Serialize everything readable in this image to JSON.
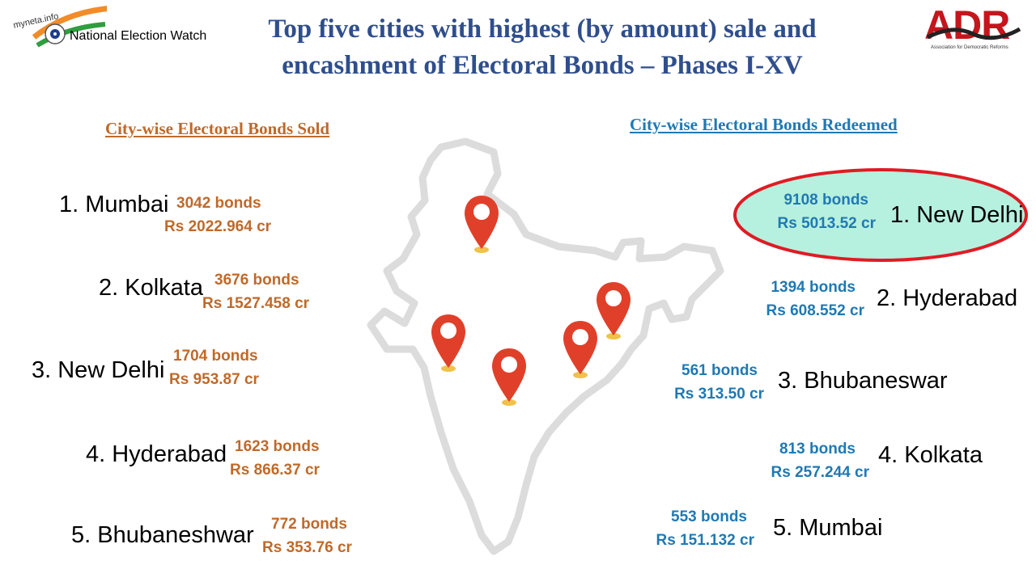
{
  "logos": {
    "left_small": "myneta.info",
    "left_main": "National Election Watch",
    "right_main": "ADR",
    "right_sub": "Association for Democratic Reforms"
  },
  "title": {
    "line1": "Top five cities with highest (by amount) sale and",
    "line2": "encashment of Electoral Bonds – Phases I-XV"
  },
  "sold": {
    "heading": "City-wise Electoral Bonds Sold",
    "items": [
      {
        "city": "1. Mumbai",
        "bonds": "3042 bonds",
        "amount": "Rs 2022.964 cr"
      },
      {
        "city": "2. Kolkata",
        "bonds": "3676 bonds",
        "amount": "Rs 1527.458 cr"
      },
      {
        "city": "3. New Delhi",
        "bonds": "1704 bonds",
        "amount": "Rs 953.87 cr"
      },
      {
        "city": "4. Hyderabad",
        "bonds": "1623 bonds",
        "amount": "Rs 866.37 cr"
      },
      {
        "city": "5. Bhubaneshwar",
        "bonds": "772 bonds",
        "amount": "Rs 353.76 cr"
      }
    ]
  },
  "redeemed": {
    "heading": "City-wise Electoral Bonds Redeemed",
    "items": [
      {
        "city": "1. New Delhi",
        "bonds": "9108 bonds",
        "amount": "Rs 5013.52 cr"
      },
      {
        "city": "2. Hyderabad",
        "bonds": "1394 bonds",
        "amount": "Rs 608.552 cr"
      },
      {
        "city": "3. Bhubaneswar",
        "bonds": "561 bonds",
        "amount": "Rs 313.50 cr"
      },
      {
        "city": "4. Kolkata",
        "bonds": "813 bonds",
        "amount": "Rs 257.244 cr"
      },
      {
        "city": "5. Mumbai",
        "bonds": "553 bonds",
        "amount": "Rs 151.132 cr"
      }
    ]
  },
  "colors": {
    "title": "#2f4e8c",
    "sold": "#c0692a",
    "redeemed": "#1f79b4",
    "highlight_fill": "#b6f0de",
    "highlight_stroke": "#e01b24",
    "pin": "#e0402a",
    "map_outline": "#d9d9d9"
  },
  "map": {
    "icon": "india-map-outline",
    "pins": [
      "map-pin-icon",
      "map-pin-icon",
      "map-pin-icon",
      "map-pin-icon",
      "map-pin-icon"
    ]
  }
}
